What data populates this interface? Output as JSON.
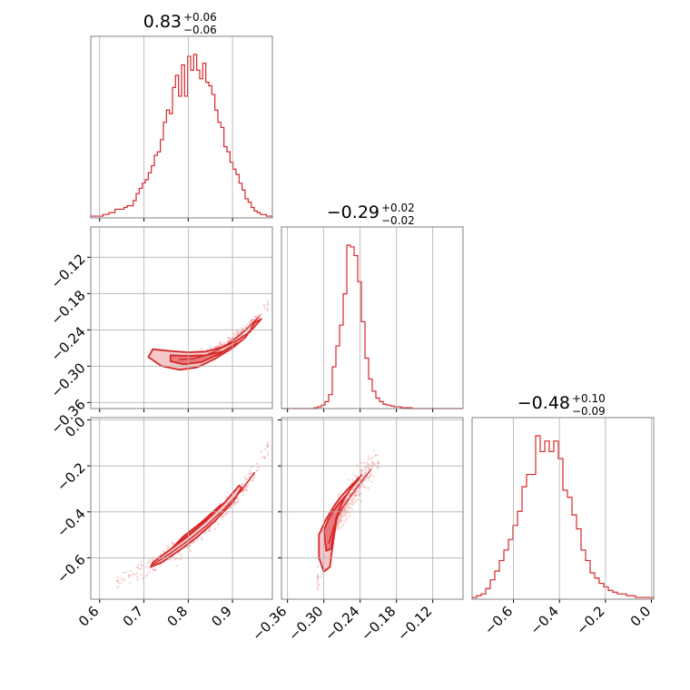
{
  "chart_data": {
    "type": "corner",
    "colors": {
      "main": "#d62728",
      "fill_inner": "#e8787a",
      "fill_outer": "#f6c8c9",
      "points": "#f1a8aa",
      "grid": "#b0b0b0",
      "frame": "#808080"
    },
    "grid": true,
    "parameters": [
      {
        "title_value": "0.83",
        "err_plus": "+0.06",
        "err_minus": "−0.06",
        "range": [
          0.58,
          0.99
        ]
      },
      {
        "title_value": "−0.29",
        "err_plus": "+0.02",
        "err_minus": "−0.02",
        "range": [
          -0.37,
          -0.07
        ]
      },
      {
        "title_value": "−0.48",
        "err_plus": "+0.10",
        "err_minus": "−0.09",
        "range": [
          -0.78,
          0.01
        ]
      }
    ],
    "ticks": {
      "p0": {
        "values": [
          0.6,
          0.7,
          0.8,
          0.9
        ],
        "labels": [
          "0.6",
          "0.7",
          "0.8",
          "0.9"
        ]
      },
      "p1": {
        "values": [
          -0.36,
          -0.3,
          -0.24,
          -0.18,
          -0.12
        ],
        "labels": [
          "−0.36",
          "−0.30",
          "−0.24",
          "−0.18",
          "−0.12"
        ]
      },
      "p2": {
        "values": [
          -0.6,
          -0.4,
          -0.2,
          0.0
        ],
        "labels": [
          "−0.6",
          "−0.4",
          "−0.2",
          "0.0"
        ]
      }
    },
    "histograms": [
      {
        "param": 0,
        "bin_edges": [
          0.58,
          0.99
        ],
        "counts": [
          1,
          1,
          1,
          1,
          2,
          2,
          3,
          3,
          5,
          5,
          5,
          6,
          7,
          7,
          10,
          14,
          17,
          20,
          22,
          26,
          30,
          36,
          38,
          45,
          55,
          62,
          60,
          75,
          82,
          70,
          88,
          70,
          93,
          85,
          94,
          85,
          80,
          89,
          78,
          76,
          71,
          62,
          55,
          52,
          41,
          38,
          32,
          28,
          25,
          20,
          16,
          11,
          9,
          6,
          4,
          3,
          2,
          2,
          1,
          1
        ]
      },
      {
        "param": 1,
        "bin_edges": [
          -0.37,
          -0.07
        ],
        "counts": [
          0,
          0,
          0,
          0,
          0,
          0,
          0,
          0,
          0,
          1,
          2,
          4,
          8,
          16,
          48,
          72,
          96,
          132,
          188,
          186,
          176,
          146,
          100,
          58,
          34,
          20,
          12,
          8,
          5,
          4,
          3,
          2,
          2,
          1,
          1,
          1,
          0,
          0,
          0,
          0,
          0,
          0,
          0,
          0,
          0,
          0,
          0,
          0,
          0,
          0
        ]
      },
      {
        "param": 2,
        "bin_edges": [
          -0.78,
          0.01
        ],
        "counts": [
          1,
          2,
          3,
          6,
          11,
          16,
          22,
          28,
          34,
          42,
          50,
          64,
          71,
          71,
          93,
          84,
          90,
          84,
          90,
          80,
          62,
          58,
          48,
          40,
          28,
          22,
          15,
          12,
          9,
          7,
          5,
          4,
          3,
          3,
          2,
          2,
          1,
          1,
          1,
          1
        ]
      }
    ],
    "scatter_2d": [
      {
        "x_param": 0,
        "y_param": 1,
        "curve_x": [
          0.72,
          0.75,
          0.78,
          0.81,
          0.84,
          0.87,
          0.9,
          0.93,
          0.96,
          0.98
        ],
        "curve_y": [
          -0.279,
          -0.285,
          -0.289,
          -0.288,
          -0.282,
          -0.272,
          -0.258,
          -0.24,
          -0.218,
          -0.196
        ],
        "spread": 0.012,
        "contour_outer_x": [
          0.72,
          0.76,
          0.8,
          0.84,
          0.88,
          0.91,
          0.94,
          0.965,
          0.95,
          0.93,
          0.9,
          0.86,
          0.82,
          0.78,
          0.74,
          0.71
        ],
        "contour_outer_y": [
          -0.272,
          -0.275,
          -0.277,
          -0.276,
          -0.268,
          -0.258,
          -0.243,
          -0.222,
          -0.228,
          -0.252,
          -0.27,
          -0.288,
          -0.302,
          -0.306,
          -0.3,
          -0.285
        ],
        "contour_inner_x": [
          0.76,
          0.8,
          0.84,
          0.88,
          0.91,
          0.9,
          0.87,
          0.83,
          0.79,
          0.76
        ],
        "contour_inner_y": [
          -0.282,
          -0.283,
          -0.282,
          -0.275,
          -0.262,
          -0.266,
          -0.28,
          -0.293,
          -0.297,
          -0.292
        ]
      },
      {
        "x_param": 0,
        "y_param": 2,
        "curve_x": [
          0.64,
          0.68,
          0.72,
          0.76,
          0.8,
          0.84,
          0.88,
          0.92,
          0.95,
          0.98
        ],
        "curve_y": [
          -0.705,
          -0.672,
          -0.63,
          -0.58,
          -0.525,
          -0.462,
          -0.39,
          -0.307,
          -0.228,
          -0.12
        ],
        "spread": 0.02,
        "contour_outer_x": [
          0.72,
          0.76,
          0.8,
          0.84,
          0.88,
          0.915,
          0.92,
          0.9,
          0.86,
          0.82,
          0.78,
          0.74,
          0.715
        ],
        "contour_outer_y": [
          -0.62,
          -0.563,
          -0.505,
          -0.44,
          -0.365,
          -0.285,
          -0.295,
          -0.36,
          -0.44,
          -0.51,
          -0.568,
          -0.62,
          -0.64
        ],
        "contour_inner_x": [
          0.77,
          0.81,
          0.85,
          0.88,
          0.87,
          0.83,
          0.79,
          0.765
        ],
        "contour_inner_y": [
          -0.545,
          -0.487,
          -0.42,
          -0.363,
          -0.375,
          -0.445,
          -0.505,
          -0.555
        ]
      },
      {
        "x_param": 1,
        "y_param": 2,
        "curve_x": [
          -0.31,
          -0.3,
          -0.292,
          -0.284,
          -0.276,
          -0.266,
          -0.255,
          -0.244,
          -0.233,
          -0.222,
          -0.21
        ],
        "curve_y": [
          -0.68,
          -0.62,
          -0.54,
          -0.47,
          -0.415,
          -0.37,
          -0.33,
          -0.29,
          -0.252,
          -0.215,
          -0.175
        ],
        "spread": 0.035,
        "contour_outer_x": [
          -0.308,
          -0.298,
          -0.29,
          -0.282,
          -0.272,
          -0.26,
          -0.248,
          -0.238,
          -0.244,
          -0.256,
          -0.268,
          -0.278,
          -0.284,
          -0.29,
          -0.3,
          -0.308
        ],
        "contour_outer_y": [
          -0.5,
          -0.44,
          -0.405,
          -0.37,
          -0.335,
          -0.3,
          -0.268,
          -0.24,
          -0.262,
          -0.3,
          -0.35,
          -0.42,
          -0.52,
          -0.64,
          -0.66,
          -0.6
        ],
        "contour_inner_x": [
          -0.3,
          -0.292,
          -0.284,
          -0.274,
          -0.264,
          -0.27,
          -0.28,
          -0.288,
          -0.296
        ],
        "contour_inner_y": [
          -0.48,
          -0.43,
          -0.395,
          -0.36,
          -0.33,
          -0.36,
          -0.43,
          -0.56,
          -0.57
        ]
      }
    ]
  }
}
